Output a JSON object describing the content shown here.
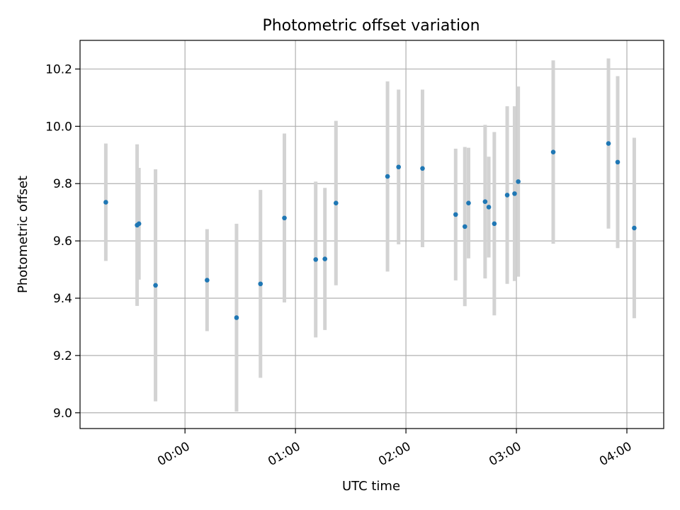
{
  "chart_data": {
    "type": "scatter",
    "title": "Photometric offset variation",
    "xlabel": "UTC time",
    "ylabel": "Photometric offset",
    "x_unit": "UTC",
    "xlim": [
      "23:03",
      "04:20"
    ],
    "ylim": [
      8.945,
      10.3
    ],
    "x_ticks": [
      "00:00",
      "01:00",
      "02:00",
      "03:00",
      "04:00"
    ],
    "y_ticks": [
      9.0,
      9.2,
      9.4,
      9.6,
      9.8,
      10.0,
      10.2
    ],
    "grid": true,
    "legend": "none",
    "marker_color": "#1f77b4",
    "errorbar_color": "#d3d3d3",
    "points": [
      {
        "x": "23:17",
        "y": 9.735,
        "err": 0.205
      },
      {
        "x": "23:34",
        "y": 9.655,
        "err": 0.282
      },
      {
        "x": "23:35",
        "y": 9.66,
        "err": 0.195
      },
      {
        "x": "23:44",
        "y": 9.445,
        "err": 0.405
      },
      {
        "x": "00:12",
        "y": 9.463,
        "err": 0.178
      },
      {
        "x": "00:28",
        "y": 9.332,
        "err": 0.328
      },
      {
        "x": "00:41",
        "y": 9.45,
        "err": 0.328
      },
      {
        "x": "00:54",
        "y": 9.68,
        "err": 0.295
      },
      {
        "x": "01:11",
        "y": 9.535,
        "err": 0.272
      },
      {
        "x": "01:16",
        "y": 9.537,
        "err": 0.248
      },
      {
        "x": "01:22",
        "y": 9.732,
        "err": 0.287
      },
      {
        "x": "01:50",
        "y": 9.825,
        "err": 0.332
      },
      {
        "x": "01:56",
        "y": 9.858,
        "err": 0.27
      },
      {
        "x": "02:09",
        "y": 9.853,
        "err": 0.275
      },
      {
        "x": "02:27",
        "y": 9.692,
        "err": 0.23
      },
      {
        "x": "02:32",
        "y": 9.65,
        "err": 0.278
      },
      {
        "x": "02:34",
        "y": 9.732,
        "err": 0.193
      },
      {
        "x": "02:43",
        "y": 9.737,
        "err": 0.268
      },
      {
        "x": "02:45",
        "y": 9.718,
        "err": 0.176
      },
      {
        "x": "02:48",
        "y": 9.66,
        "err": 0.32
      },
      {
        "x": "02:55",
        "y": 9.76,
        "err": 0.31
      },
      {
        "x": "02:59",
        "y": 9.765,
        "err": 0.305
      },
      {
        "x": "03:01",
        "y": 9.807,
        "err": 0.332
      },
      {
        "x": "03:20",
        "y": 9.91,
        "err": 0.32
      },
      {
        "x": "03:50",
        "y": 9.94,
        "err": 0.297
      },
      {
        "x": "03:55",
        "y": 9.875,
        "err": 0.3
      },
      {
        "x": "04:04",
        "y": 9.645,
        "err": 0.315
      }
    ]
  }
}
